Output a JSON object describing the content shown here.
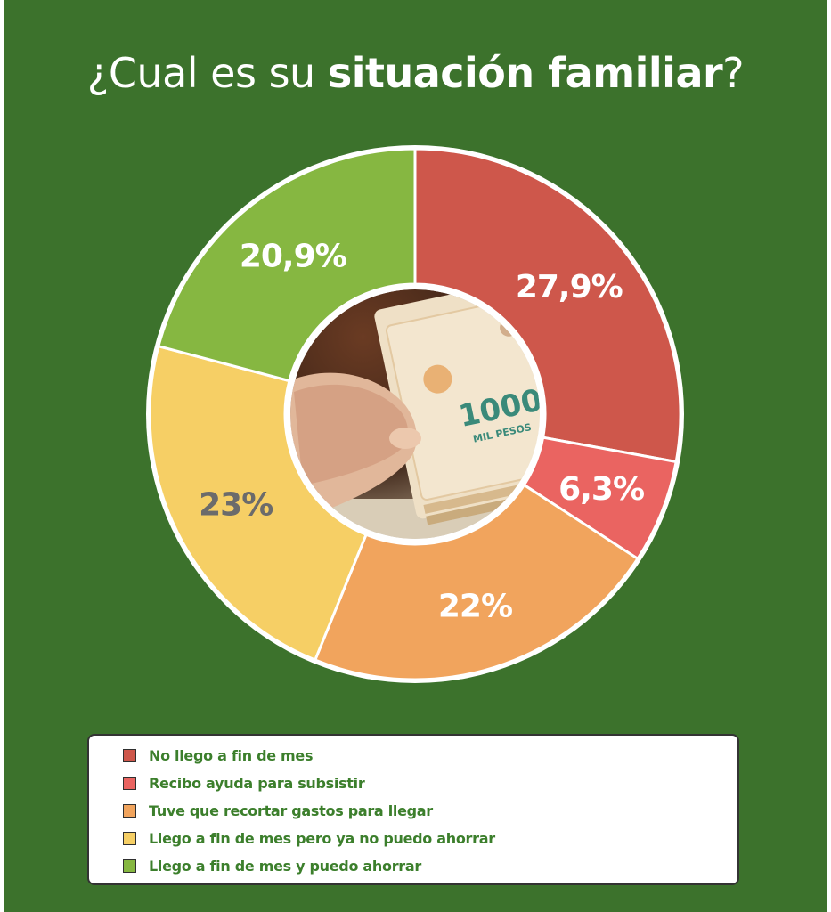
{
  "title": {
    "prefix": "¿Cual es su ",
    "bold": "situación familiar",
    "suffix": "?"
  },
  "center_image": {
    "banknote_text": "1000",
    "banknote_subtext": "MIL PESOS"
  },
  "chart_data": {
    "type": "pie",
    "donut": true,
    "title": "¿Cual es su situación familiar?",
    "slices": [
      {
        "label": "No llego a fin de mes",
        "value": 27.9,
        "display": "27,9%",
        "color": "#ce574b",
        "text_color": "#ffffff"
      },
      {
        "label": "Recibo ayuda para subsistir",
        "value": 6.3,
        "display": "6,3%",
        "color": "#ea6461",
        "text_color": "#ffffff"
      },
      {
        "label": "Tuve que recortar gastos para llegar",
        "value": 22,
        "display": "22%",
        "color": "#f1a45d",
        "text_color": "#ffffff"
      },
      {
        "label": "Llego a fin de mes pero ya no puedo ahorrar",
        "value": 23,
        "display": "23%",
        "color": "#f6cf65",
        "text_color": "#6b6b6b"
      },
      {
        "label": "Llego a fin de mes y puedo ahorrar",
        "value": 20.9,
        "display": "20,9%",
        "color": "#86b741",
        "text_color": "#ffffff"
      }
    ],
    "legend_position": "bottom"
  }
}
